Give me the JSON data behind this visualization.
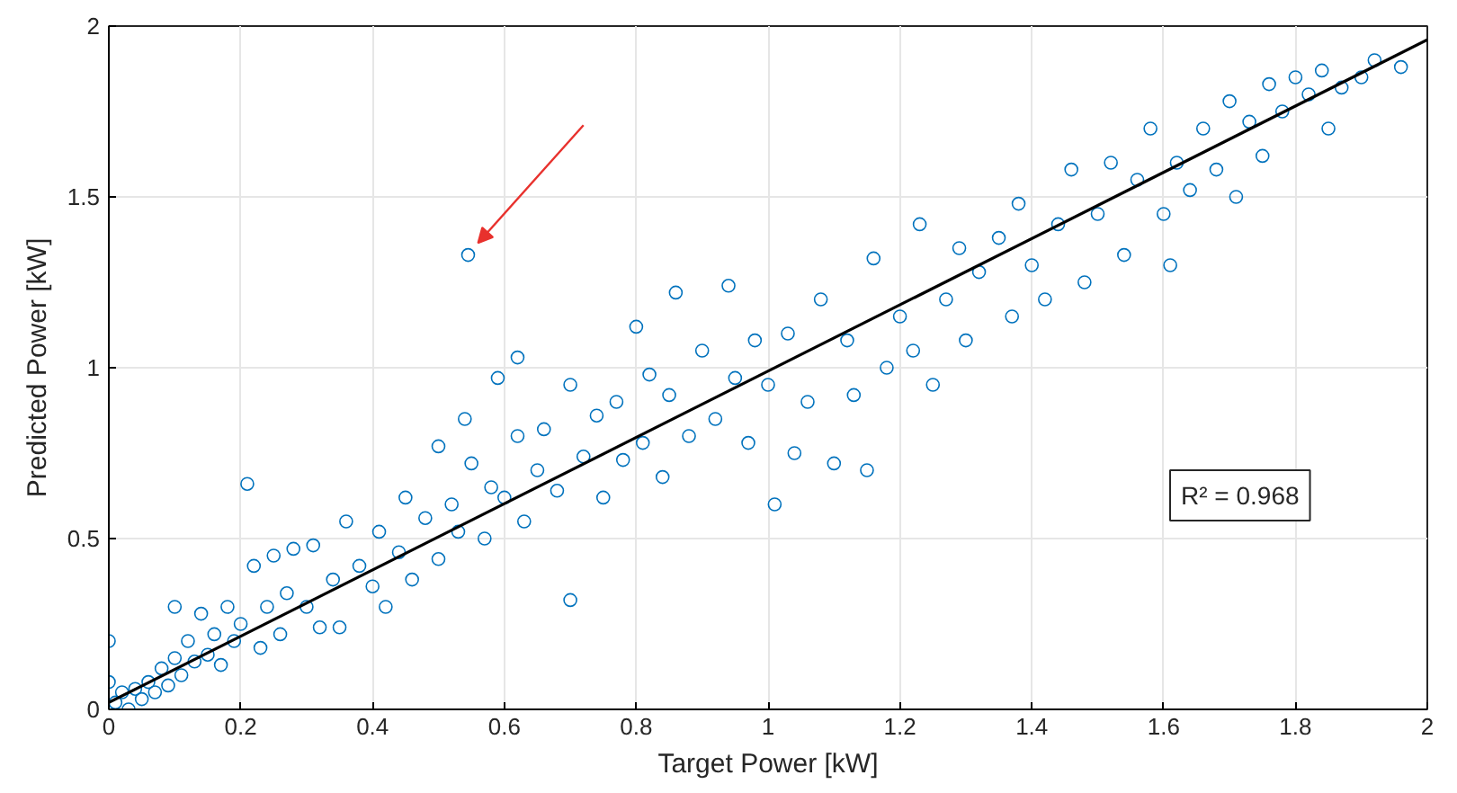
{
  "chart_data": {
    "type": "scatter",
    "xlabel": "Target Power [kW]",
    "ylabel": "Predicted Power [kW]",
    "xlim": [
      0,
      2
    ],
    "ylim": [
      0,
      2
    ],
    "xticks": [
      0,
      0.2,
      0.4,
      0.6,
      0.8,
      1,
      1.2,
      1.4,
      1.6,
      1.8,
      2
    ],
    "yticks": [
      0,
      0.5,
      1,
      1.5,
      2
    ],
    "grid": true,
    "marker": "circle",
    "annotations": [
      "R² = 0.968"
    ],
    "series": [
      {
        "color": "#0072bd",
        "x": [
          0.0,
          0.0,
          0.01,
          0.02,
          0.03,
          0.04,
          0.05,
          0.06,
          0.07,
          0.08,
          0.09,
          0.1,
          0.1,
          0.11,
          0.12,
          0.13,
          0.14,
          0.15,
          0.16,
          0.17,
          0.18,
          0.19,
          0.2,
          0.21,
          0.22,
          0.23,
          0.24,
          0.25,
          0.26,
          0.27,
          0.28,
          0.3,
          0.31,
          0.32,
          0.34,
          0.35,
          0.36,
          0.38,
          0.4,
          0.41,
          0.42,
          0.44,
          0.45,
          0.46,
          0.48,
          0.5,
          0.5,
          0.52,
          0.53,
          0.545,
          0.54,
          0.55,
          0.57,
          0.58,
          0.59,
          0.6,
          0.62,
          0.62,
          0.63,
          0.65,
          0.66,
          0.68,
          0.7,
          0.7,
          0.72,
          0.74,
          0.75,
          0.77,
          0.78,
          0.8,
          0.81,
          0.82,
          0.84,
          0.85,
          0.86,
          0.88,
          0.9,
          0.92,
          0.94,
          0.95,
          0.97,
          0.98,
          1.0,
          1.01,
          1.03,
          1.04,
          1.06,
          1.08,
          1.1,
          1.12,
          1.13,
          1.15,
          1.16,
          1.18,
          1.2,
          1.22,
          1.23,
          1.25,
          1.27,
          1.29,
          1.3,
          1.32,
          1.35,
          1.37,
          1.38,
          1.4,
          1.42,
          1.44,
          1.46,
          1.48,
          1.5,
          1.52,
          1.54,
          1.56,
          1.58,
          1.6,
          1.61,
          1.62,
          1.64,
          1.66,
          1.68,
          1.7,
          1.71,
          1.73,
          1.75,
          1.76,
          1.78,
          1.8,
          1.82,
          1.84,
          1.85,
          1.87,
          1.9,
          1.92,
          1.96
        ],
        "values": [
          0.2,
          0.08,
          0.02,
          0.05,
          0.0,
          0.06,
          0.03,
          0.08,
          0.05,
          0.12,
          0.07,
          0.15,
          0.3,
          0.1,
          0.2,
          0.14,
          0.28,
          0.16,
          0.22,
          0.13,
          0.3,
          0.2,
          0.25,
          0.66,
          0.42,
          0.18,
          0.3,
          0.45,
          0.22,
          0.34,
          0.47,
          0.3,
          0.48,
          0.24,
          0.38,
          0.24,
          0.55,
          0.42,
          0.36,
          0.52,
          0.3,
          0.46,
          0.62,
          0.38,
          0.56,
          0.44,
          0.77,
          0.6,
          0.52,
          1.33,
          0.85,
          0.72,
          0.5,
          0.65,
          0.97,
          0.62,
          0.8,
          1.03,
          0.55,
          0.7,
          0.82,
          0.64,
          0.95,
          0.32,
          0.74,
          0.86,
          0.62,
          0.9,
          0.73,
          1.12,
          0.78,
          0.98,
          0.68,
          0.92,
          1.22,
          0.8,
          1.05,
          0.85,
          1.24,
          0.97,
          0.78,
          1.08,
          0.95,
          0.6,
          1.1,
          0.75,
          0.9,
          1.2,
          0.72,
          1.08,
          0.92,
          0.7,
          1.32,
          1.0,
          1.15,
          1.05,
          1.42,
          0.95,
          1.2,
          1.35,
          1.08,
          1.28,
          1.38,
          1.15,
          1.48,
          1.3,
          1.2,
          1.42,
          1.58,
          1.25,
          1.45,
          1.6,
          1.33,
          1.55,
          1.7,
          1.45,
          1.3,
          1.6,
          1.52,
          1.7,
          1.58,
          1.78,
          1.5,
          1.72,
          1.62,
          1.83,
          1.75,
          1.85,
          1.8,
          1.87,
          1.7,
          1.82,
          1.85,
          1.9,
          1.88
        ]
      },
      {
        "type": "line",
        "marker": "none",
        "color": "#000000",
        "x": [
          0,
          2
        ],
        "values": [
          0.02,
          1.96
        ]
      }
    ]
  }
}
